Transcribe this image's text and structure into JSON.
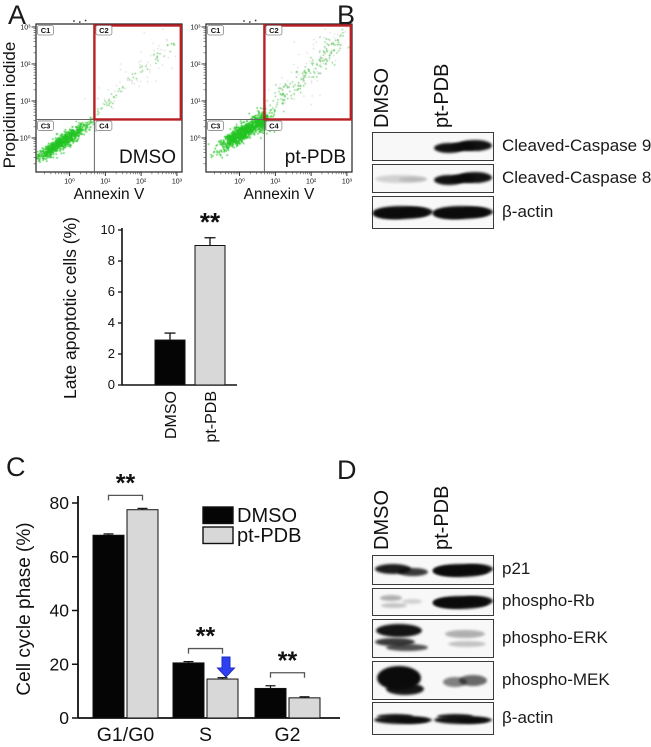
{
  "panel_a": {
    "letter": "A",
    "flow": {
      "y_label": "Propidium iodide",
      "x_label": "Annexin V",
      "y_ticks": [
        "10³",
        "10²",
        "10¹",
        "10⁰"
      ],
      "x_ticks": [
        "10⁰",
        "10¹",
        "10²",
        "10³"
      ],
      "quadrants": [
        "C1",
        "C2",
        "C3",
        "C4"
      ],
      "samples": [
        "DMSO",
        "pt-PDB"
      ]
    }
  },
  "panel_b": {
    "letter": "B",
    "lanes": [
      "DMSO",
      "pt-PDB"
    ],
    "rows": [
      {
        "label": "Cleaved-Caspase 9",
        "bands": [
          "none",
          "strong"
        ]
      },
      {
        "label": "Cleaved-Caspase 8",
        "bands": [
          "faint",
          "strong"
        ]
      },
      {
        "label": "β-actin",
        "bands": [
          "strong-wide",
          "strong-wide"
        ]
      }
    ]
  },
  "panel_c": {
    "letter": "C"
  },
  "panel_d": {
    "letter": "D",
    "lanes": [
      "DMSO",
      "pt-PDB"
    ],
    "rows": [
      {
        "label": "p21",
        "bands": [
          "medium-strong",
          "strong-wide"
        ]
      },
      {
        "label": "phospho-Rb",
        "bands": [
          "faint-speckle",
          "strong-wide"
        ]
      },
      {
        "label": "phospho-ERK",
        "bands": [
          "strong-double",
          "faint-double"
        ]
      },
      {
        "label": "phospho-MEK",
        "bands": [
          "very-strong",
          "medium"
        ]
      },
      {
        "label": "β-actin",
        "bands": [
          "thin-wavy",
          "thin-wavy"
        ]
      }
    ]
  },
  "colors": {
    "significance_red": "#ee1c25",
    "gate_red": "#b92025",
    "dot_green": "#22c422",
    "arrow_blue": "#2f3ff2",
    "bar_black": "#050505",
    "bar_gray": "#d8d8d8"
  },
  "chart_data": [
    {
      "id": "flow-dmso",
      "type": "scatter",
      "title": "DMSO",
      "xlabel": "Annexin V",
      "ylabel": "Propidium iodide",
      "xscale": "log",
      "yscale": "log",
      "xticks": [
        "10⁰",
        "10¹",
        "10²",
        "10³"
      ],
      "yticks": [
        "10⁰",
        "10¹",
        "10²",
        "10³"
      ],
      "gates": [
        "C1",
        "C2",
        "C3",
        "C4"
      ],
      "highlighted_gate": "C2",
      "description": "Dense viable population (Annexin V-/PI-) in C3 with a sparse diagonal trail of double-positive events extending into the red C2 gate."
    },
    {
      "id": "flow-ptpdb",
      "type": "scatter",
      "title": "pt-PDB",
      "xlabel": "Annexin V",
      "ylabel": "Propidium iodide",
      "xscale": "log",
      "yscale": "log",
      "xticks": [
        "10⁰",
        "10¹",
        "10²",
        "10³"
      ],
      "yticks": [
        "10⁰",
        "10¹",
        "10²",
        "10³"
      ],
      "gates": [
        "C1",
        "C2",
        "C3",
        "C4"
      ],
      "highlighted_gate": "C2",
      "description": "Main population shifted toward the C3/C4 boundary with a markedly increased number of late-apoptotic events along the diagonal inside the red C2 gate."
    },
    {
      "id": "late-apoptotic-bar",
      "type": "bar",
      "ylabel": "Late apoptotic cells (%)",
      "categories": [
        "DMSO",
        "pt-PDB"
      ],
      "values": [
        2.9,
        9.0
      ],
      "errors": [
        0.45,
        0.5
      ],
      "bar_colors": [
        "#050505",
        "#d8d8d8"
      ],
      "ylim": [
        0,
        10
      ],
      "yticks": [
        0,
        2,
        4,
        6,
        8,
        10
      ],
      "significance": [
        {
          "category": "pt-PDB",
          "label": "**"
        }
      ]
    },
    {
      "id": "cell-cycle-bar",
      "type": "bar",
      "ylabel": "Cell cycle phase (%)",
      "categories": [
        "G1/G0",
        "S",
        "G2"
      ],
      "series": [
        {
          "name": "DMSO",
          "color": "#050505",
          "values": [
            68,
            20.5,
            11
          ],
          "errors": [
            0.5,
            0.5,
            1.0
          ]
        },
        {
          "name": "pt-PDB",
          "color": "#d8d8d8",
          "values": [
            77.5,
            14.5,
            7.5
          ],
          "errors": [
            0.5,
            0.5,
            0.4
          ]
        }
      ],
      "ylim": [
        0,
        80
      ],
      "yticks": [
        0,
        20,
        40,
        60,
        80
      ],
      "legend": {
        "position": "top-right",
        "entries": [
          "DMSO",
          "pt-PDB"
        ]
      },
      "significance": [
        {
          "category": "G1/G0",
          "label": "**"
        },
        {
          "category": "S",
          "label": "**"
        },
        {
          "category": "G2",
          "label": "**"
        }
      ],
      "annotations": [
        {
          "type": "arrow-down",
          "category": "S",
          "series": "pt-PDB",
          "color": "#2f3ff2"
        }
      ]
    }
  ]
}
